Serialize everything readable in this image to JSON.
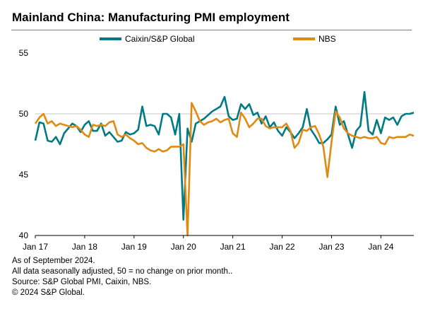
{
  "title": "Mainland China: Manufacturing PMI employment",
  "footnotes": [
    "As of September 2024.",
    "All data seasonally adjusted, 50 = no change on prior month..",
    "Source: S&P Global PMI, Caixin, NBS.",
    "© 2024 S&P Global."
  ],
  "colors": {
    "caixin": "#007b84",
    "nbs": "#e08a12",
    "grid": "#d9d9d9",
    "axis": "#000000"
  },
  "chart_data": {
    "type": "line",
    "x_unit": "month",
    "x_start": "2017-01",
    "x_end": "2024-09",
    "ylim": [
      40,
      55
    ],
    "yticks": [
      40,
      45,
      50,
      55
    ],
    "xtick_labels": [
      "Jan 17",
      "Jan 18",
      "Jan 19",
      "Jan 20",
      "Jan 21",
      "Jan 22",
      "Jan 23",
      "Jan 24"
    ],
    "reference_line": 50,
    "legend_position": "top",
    "series": [
      {
        "name": "Caixin/S&P Global",
        "color": "#007b84",
        "values": [
          47.8,
          49.3,
          49.2,
          47.8,
          47.7,
          48.1,
          47.5,
          48.4,
          48.8,
          49.2,
          49.0,
          48.5,
          49.1,
          49.4,
          48.6,
          48.6,
          49.2,
          48.2,
          48.5,
          48.1,
          47.7,
          47.8,
          48.5,
          48.3,
          48.4,
          48.7,
          50.6,
          49.0,
          49.1,
          49.0,
          48.3,
          50.0,
          50.0,
          49.7,
          48.3,
          50.0,
          41.3,
          48.8,
          47.7,
          49.2,
          49.4,
          49.6,
          49.9,
          50.2,
          50.4,
          50.6,
          51.4,
          49.8,
          49.5,
          49.6,
          50.8,
          50.4,
          50.8,
          49.9,
          50.1,
          49.2,
          49.8,
          48.9,
          49.3,
          48.6,
          48.2,
          48.9,
          48.5,
          48.0,
          48.4,
          48.9,
          50.4,
          48.7,
          48.2,
          47.6,
          47.6,
          47.9,
          48.3,
          50.6,
          49.1,
          49.4,
          48.3,
          47.2,
          48.6,
          49.0,
          51.8,
          48.6,
          48.3,
          49.5,
          48.4,
          49.7,
          49.5,
          49.7,
          49.1,
          49.8,
          50.0,
          50.0,
          50.1
        ]
      },
      {
        "name": "NBS",
        "color": "#e08a12",
        "values": [
          49.2,
          49.7,
          50.0,
          49.2,
          49.4,
          49.0,
          49.2,
          49.1,
          49.0,
          48.9,
          49.0,
          48.7,
          48.3,
          48.1,
          49.1,
          49.0,
          49.1,
          49.0,
          49.3,
          49.4,
          48.3,
          48.1,
          48.3,
          48.0,
          47.8,
          47.5,
          47.6,
          47.2,
          47.0,
          46.9,
          47.1,
          46.9,
          47.0,
          47.3,
          47.3,
          47.3,
          47.5,
          40.0,
          50.9,
          50.2,
          49.4,
          49.1,
          49.3,
          49.4,
          49.6,
          49.3,
          49.5,
          49.6,
          48.4,
          48.1,
          50.1,
          49.6,
          48.9,
          49.2,
          49.6,
          49.6,
          49.0,
          48.8,
          48.9,
          48.9,
          48.9,
          49.2,
          48.6,
          47.2,
          47.6,
          48.7,
          48.6,
          48.9,
          49.0,
          48.3,
          47.3,
          44.8,
          47.7,
          50.2,
          49.7,
          48.8,
          48.4,
          48.2,
          48.1,
          48.0,
          48.1,
          48.0,
          48.0,
          48.1,
          47.6,
          47.5,
          48.1,
          48.0,
          48.1,
          48.1,
          48.1,
          48.3,
          48.2
        ]
      }
    ]
  }
}
